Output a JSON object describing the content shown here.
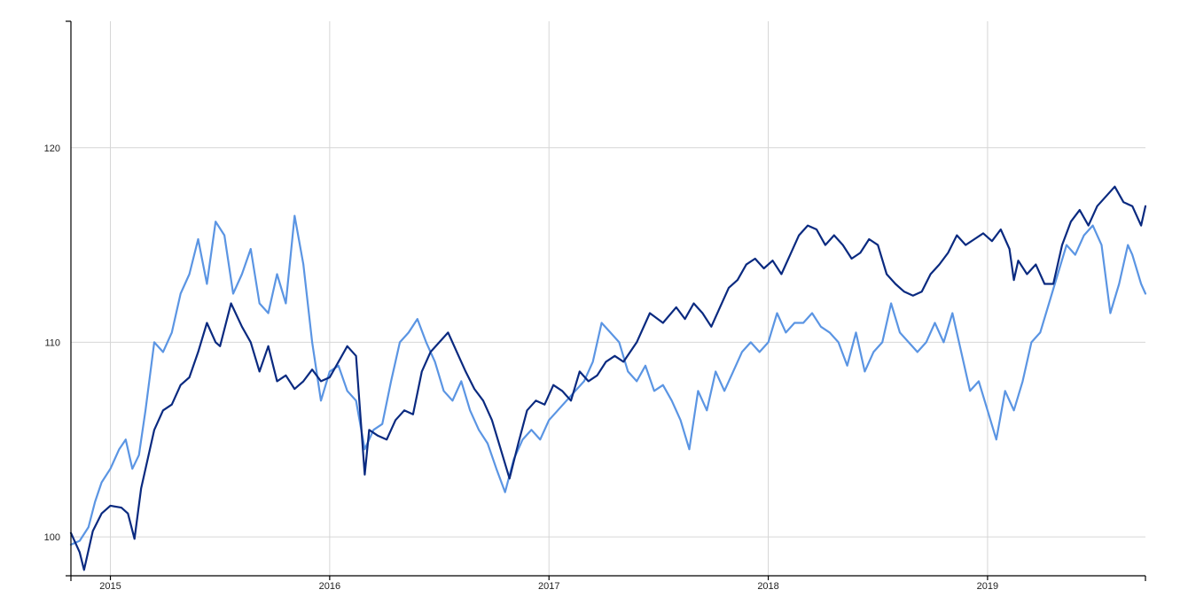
{
  "chart_data": {
    "type": "line",
    "title": "",
    "xlabel": "",
    "ylabel": "",
    "x_range": [
      2014.82,
      2019.72
    ],
    "ylim": [
      98,
      126.5
    ],
    "y_ticks": [
      100,
      110,
      120
    ],
    "y_tick_labels": [
      "100",
      "110",
      "120"
    ],
    "x_ticks": [
      2015,
      2016,
      2017,
      2018,
      2019
    ],
    "x_tick_labels": [
      "2015",
      "2016",
      "2017",
      "2018",
      "2019"
    ],
    "grid": true,
    "legend": "none",
    "series": [
      {
        "color": "#0a2a80",
        "points": [
          [
            2014.82,
            100.2
          ],
          [
            2014.86,
            99.2
          ],
          [
            2014.88,
            98.3
          ],
          [
            2014.92,
            100.3
          ],
          [
            2014.96,
            101.2
          ],
          [
            2015.0,
            101.6
          ],
          [
            2015.05,
            101.5
          ],
          [
            2015.08,
            101.2
          ],
          [
            2015.11,
            99.9
          ],
          [
            2015.14,
            102.5
          ],
          [
            2015.17,
            104.0
          ],
          [
            2015.2,
            105.5
          ],
          [
            2015.24,
            106.5
          ],
          [
            2015.28,
            106.8
          ],
          [
            2015.32,
            107.8
          ],
          [
            2015.36,
            108.2
          ],
          [
            2015.4,
            109.5
          ],
          [
            2015.44,
            111.0
          ],
          [
            2015.48,
            110.0
          ],
          [
            2015.5,
            109.8
          ],
          [
            2015.55,
            112.0
          ],
          [
            2015.6,
            110.8
          ],
          [
            2015.64,
            110.0
          ],
          [
            2015.68,
            108.5
          ],
          [
            2015.72,
            109.8
          ],
          [
            2015.76,
            108.0
          ],
          [
            2015.8,
            108.3
          ],
          [
            2015.84,
            107.6
          ],
          [
            2015.88,
            108.0
          ],
          [
            2015.92,
            108.6
          ],
          [
            2015.96,
            108.0
          ],
          [
            2016.0,
            108.2
          ],
          [
            2016.04,
            109.0
          ],
          [
            2016.08,
            109.8
          ],
          [
            2016.12,
            109.3
          ],
          [
            2016.16,
            103.2
          ],
          [
            2016.18,
            105.5
          ],
          [
            2016.22,
            105.2
          ],
          [
            2016.26,
            105.0
          ],
          [
            2016.3,
            106.0
          ],
          [
            2016.34,
            106.5
          ],
          [
            2016.38,
            106.3
          ],
          [
            2016.42,
            108.5
          ],
          [
            2016.46,
            109.5
          ],
          [
            2016.5,
            110.0
          ],
          [
            2016.54,
            110.5
          ],
          [
            2016.58,
            109.5
          ],
          [
            2016.62,
            108.5
          ],
          [
            2016.66,
            107.6
          ],
          [
            2016.7,
            107.0
          ],
          [
            2016.74,
            106.0
          ],
          [
            2016.78,
            104.5
          ],
          [
            2016.82,
            103.0
          ],
          [
            2016.86,
            104.8
          ],
          [
            2016.9,
            106.5
          ],
          [
            2016.94,
            107.0
          ],
          [
            2016.98,
            106.8
          ],
          [
            2017.02,
            107.8
          ],
          [
            2017.06,
            107.5
          ],
          [
            2017.1,
            107.0
          ],
          [
            2017.14,
            108.5
          ],
          [
            2017.18,
            108.0
          ],
          [
            2017.22,
            108.3
          ],
          [
            2017.26,
            109.0
          ],
          [
            2017.3,
            109.3
          ],
          [
            2017.34,
            109.0
          ],
          [
            2017.4,
            110.0
          ],
          [
            2017.46,
            111.5
          ],
          [
            2017.52,
            111.0
          ],
          [
            2017.58,
            111.8
          ],
          [
            2017.62,
            111.2
          ],
          [
            2017.66,
            112.0
          ],
          [
            2017.7,
            111.5
          ],
          [
            2017.74,
            110.8
          ],
          [
            2017.78,
            111.8
          ],
          [
            2017.82,
            112.8
          ],
          [
            2017.86,
            113.2
          ],
          [
            2017.9,
            114.0
          ],
          [
            2017.94,
            114.3
          ],
          [
            2017.98,
            113.8
          ],
          [
            2018.02,
            114.2
          ],
          [
            2018.06,
            113.5
          ],
          [
            2018.1,
            114.5
          ],
          [
            2018.14,
            115.5
          ],
          [
            2018.18,
            116.0
          ],
          [
            2018.22,
            115.8
          ],
          [
            2018.26,
            115.0
          ],
          [
            2018.3,
            115.5
          ],
          [
            2018.34,
            115.0
          ],
          [
            2018.38,
            114.3
          ],
          [
            2018.42,
            114.6
          ],
          [
            2018.46,
            115.3
          ],
          [
            2018.5,
            115.0
          ],
          [
            2018.54,
            113.5
          ],
          [
            2018.58,
            113.0
          ],
          [
            2018.62,
            112.6
          ],
          [
            2018.66,
            112.4
          ],
          [
            2018.7,
            112.6
          ],
          [
            2018.74,
            113.5
          ],
          [
            2018.78,
            114.0
          ],
          [
            2018.82,
            114.6
          ],
          [
            2018.86,
            115.5
          ],
          [
            2018.9,
            115.0
          ],
          [
            2018.94,
            115.3
          ],
          [
            2018.98,
            115.6
          ],
          [
            2019.02,
            115.2
          ],
          [
            2019.06,
            115.8
          ],
          [
            2019.1,
            114.8
          ],
          [
            2019.12,
            113.2
          ],
          [
            2019.14,
            114.2
          ],
          [
            2019.18,
            113.5
          ],
          [
            2019.22,
            114.0
          ],
          [
            2019.26,
            113.0
          ],
          [
            2019.3,
            113.0
          ],
          [
            2019.34,
            115.0
          ],
          [
            2019.38,
            116.2
          ],
          [
            2019.42,
            116.8
          ],
          [
            2019.46,
            116.0
          ],
          [
            2019.5,
            117.0
          ],
          [
            2019.54,
            117.5
          ],
          [
            2019.58,
            118.0
          ],
          [
            2019.62,
            117.2
          ],
          [
            2019.66,
            117.0
          ],
          [
            2019.7,
            116.0
          ],
          [
            2019.72,
            117.0
          ]
        ]
      },
      {
        "color": "#5b95e3",
        "points": [
          [
            2014.82,
            99.6
          ],
          [
            2014.86,
            99.8
          ],
          [
            2014.9,
            100.5
          ],
          [
            2014.93,
            101.8
          ],
          [
            2014.96,
            102.8
          ],
          [
            2015.0,
            103.5
          ],
          [
            2015.04,
            104.5
          ],
          [
            2015.07,
            105.0
          ],
          [
            2015.1,
            103.5
          ],
          [
            2015.13,
            104.2
          ],
          [
            2015.16,
            106.5
          ],
          [
            2015.2,
            110.0
          ],
          [
            2015.24,
            109.5
          ],
          [
            2015.28,
            110.5
          ],
          [
            2015.32,
            112.5
          ],
          [
            2015.36,
            113.5
          ],
          [
            2015.4,
            115.3
          ],
          [
            2015.44,
            113.0
          ],
          [
            2015.48,
            116.2
          ],
          [
            2015.52,
            115.5
          ],
          [
            2015.56,
            112.5
          ],
          [
            2015.6,
            113.5
          ],
          [
            2015.64,
            114.8
          ],
          [
            2015.68,
            112.0
          ],
          [
            2015.72,
            111.5
          ],
          [
            2015.76,
            113.5
          ],
          [
            2015.8,
            112.0
          ],
          [
            2015.84,
            116.5
          ],
          [
            2015.88,
            114.0
          ],
          [
            2015.92,
            110.0
          ],
          [
            2015.96,
            107.0
          ],
          [
            2016.0,
            108.5
          ],
          [
            2016.04,
            108.8
          ],
          [
            2016.08,
            107.5
          ],
          [
            2016.12,
            107.0
          ],
          [
            2016.16,
            104.5
          ],
          [
            2016.2,
            105.5
          ],
          [
            2016.24,
            105.8
          ],
          [
            2016.28,
            108.0
          ],
          [
            2016.32,
            110.0
          ],
          [
            2016.36,
            110.5
          ],
          [
            2016.4,
            111.2
          ],
          [
            2016.44,
            110.0
          ],
          [
            2016.48,
            109.0
          ],
          [
            2016.52,
            107.5
          ],
          [
            2016.56,
            107.0
          ],
          [
            2016.6,
            108.0
          ],
          [
            2016.64,
            106.5
          ],
          [
            2016.68,
            105.5
          ],
          [
            2016.72,
            104.8
          ],
          [
            2016.76,
            103.5
          ],
          [
            2016.8,
            102.3
          ],
          [
            2016.84,
            104.0
          ],
          [
            2016.88,
            105.0
          ],
          [
            2016.92,
            105.5
          ],
          [
            2016.96,
            105.0
          ],
          [
            2017.0,
            106.0
          ],
          [
            2017.04,
            106.5
          ],
          [
            2017.08,
            107.0
          ],
          [
            2017.12,
            107.5
          ],
          [
            2017.16,
            108.0
          ],
          [
            2017.2,
            109.0
          ],
          [
            2017.24,
            111.0
          ],
          [
            2017.28,
            110.5
          ],
          [
            2017.32,
            110.0
          ],
          [
            2017.36,
            108.5
          ],
          [
            2017.4,
            108.0
          ],
          [
            2017.44,
            108.8
          ],
          [
            2017.48,
            107.5
          ],
          [
            2017.52,
            107.8
          ],
          [
            2017.56,
            107.0
          ],
          [
            2017.6,
            106.0
          ],
          [
            2017.64,
            104.5
          ],
          [
            2017.68,
            107.5
          ],
          [
            2017.72,
            106.5
          ],
          [
            2017.76,
            108.5
          ],
          [
            2017.8,
            107.5
          ],
          [
            2017.84,
            108.5
          ],
          [
            2017.88,
            109.5
          ],
          [
            2017.92,
            110.0
          ],
          [
            2017.96,
            109.5
          ],
          [
            2018.0,
            110.0
          ],
          [
            2018.04,
            111.5
          ],
          [
            2018.08,
            110.5
          ],
          [
            2018.12,
            111.0
          ],
          [
            2018.16,
            111.0
          ],
          [
            2018.2,
            111.5
          ],
          [
            2018.24,
            110.8
          ],
          [
            2018.28,
            110.5
          ],
          [
            2018.32,
            110.0
          ],
          [
            2018.36,
            108.8
          ],
          [
            2018.4,
            110.5
          ],
          [
            2018.44,
            108.5
          ],
          [
            2018.48,
            109.5
          ],
          [
            2018.52,
            110.0
          ],
          [
            2018.56,
            112.0
          ],
          [
            2018.6,
            110.5
          ],
          [
            2018.64,
            110.0
          ],
          [
            2018.68,
            109.5
          ],
          [
            2018.72,
            110.0
          ],
          [
            2018.76,
            111.0
          ],
          [
            2018.8,
            110.0
          ],
          [
            2018.84,
            111.5
          ],
          [
            2018.88,
            109.5
          ],
          [
            2018.92,
            107.5
          ],
          [
            2018.96,
            108.0
          ],
          [
            2019.0,
            106.5
          ],
          [
            2019.04,
            105.0
          ],
          [
            2019.08,
            107.5
          ],
          [
            2019.12,
            106.5
          ],
          [
            2019.16,
            108.0
          ],
          [
            2019.2,
            110.0
          ],
          [
            2019.24,
            110.5
          ],
          [
            2019.28,
            112.0
          ],
          [
            2019.32,
            113.5
          ],
          [
            2019.36,
            115.0
          ],
          [
            2019.4,
            114.5
          ],
          [
            2019.44,
            115.5
          ],
          [
            2019.48,
            116.0
          ],
          [
            2019.52,
            115.0
          ],
          [
            2019.56,
            111.5
          ],
          [
            2019.6,
            113.0
          ],
          [
            2019.64,
            115.0
          ],
          [
            2019.66,
            114.5
          ],
          [
            2019.7,
            113.0
          ],
          [
            2019.72,
            112.5
          ]
        ]
      }
    ]
  }
}
